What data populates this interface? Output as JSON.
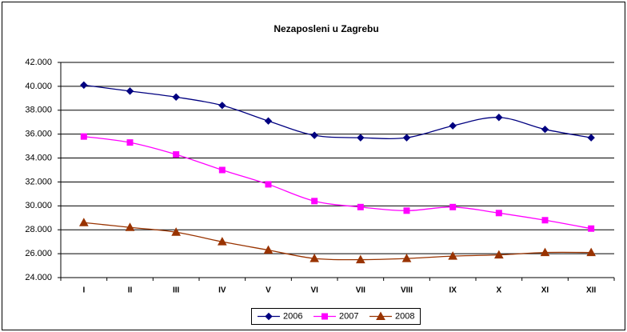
{
  "chart_data": {
    "type": "line",
    "title": "Nezaposleni u Zagrebu",
    "categories": [
      "I",
      "II",
      "III",
      "IV",
      "V",
      "VI",
      "VII",
      "VIII",
      "IX",
      "X",
      "XI",
      "XII"
    ],
    "series": [
      {
        "name": "2006",
        "color": "#000080",
        "marker": "diamond",
        "values": [
          40100,
          39600,
          39100,
          38400,
          37100,
          35900,
          35700,
          35700,
          36700,
          37400,
          36400,
          35700
        ]
      },
      {
        "name": "2007",
        "color": "#ff00ff",
        "marker": "square",
        "values": [
          35800,
          35300,
          34300,
          33000,
          31800,
          30400,
          29900,
          29600,
          29900,
          29400,
          28800,
          28100
        ]
      },
      {
        "name": "2008",
        "color": "#993300",
        "marker": "triangle",
        "values": [
          28600,
          28200,
          27800,
          27000,
          26300,
          25600,
          25500,
          25600,
          25800,
          25900,
          26100,
          26100
        ]
      }
    ],
    "ylim": [
      24000,
      42000
    ],
    "yticks": [
      {
        "value": 24000,
        "label": "24.000"
      },
      {
        "value": 26000,
        "label": "26.000"
      },
      {
        "value": 28000,
        "label": "28.000"
      },
      {
        "value": 30000,
        "label": "30.000"
      },
      {
        "value": 32000,
        "label": "32.000"
      },
      {
        "value": 34000,
        "label": "34.000"
      },
      {
        "value": 36000,
        "label": "36.000"
      },
      {
        "value": 38000,
        "label": "38.000"
      },
      {
        "value": 40000,
        "label": "40.000"
      },
      {
        "value": 42000,
        "label": "42.000"
      }
    ],
    "grid": true,
    "smooth": true,
    "legend": "bottom"
  }
}
